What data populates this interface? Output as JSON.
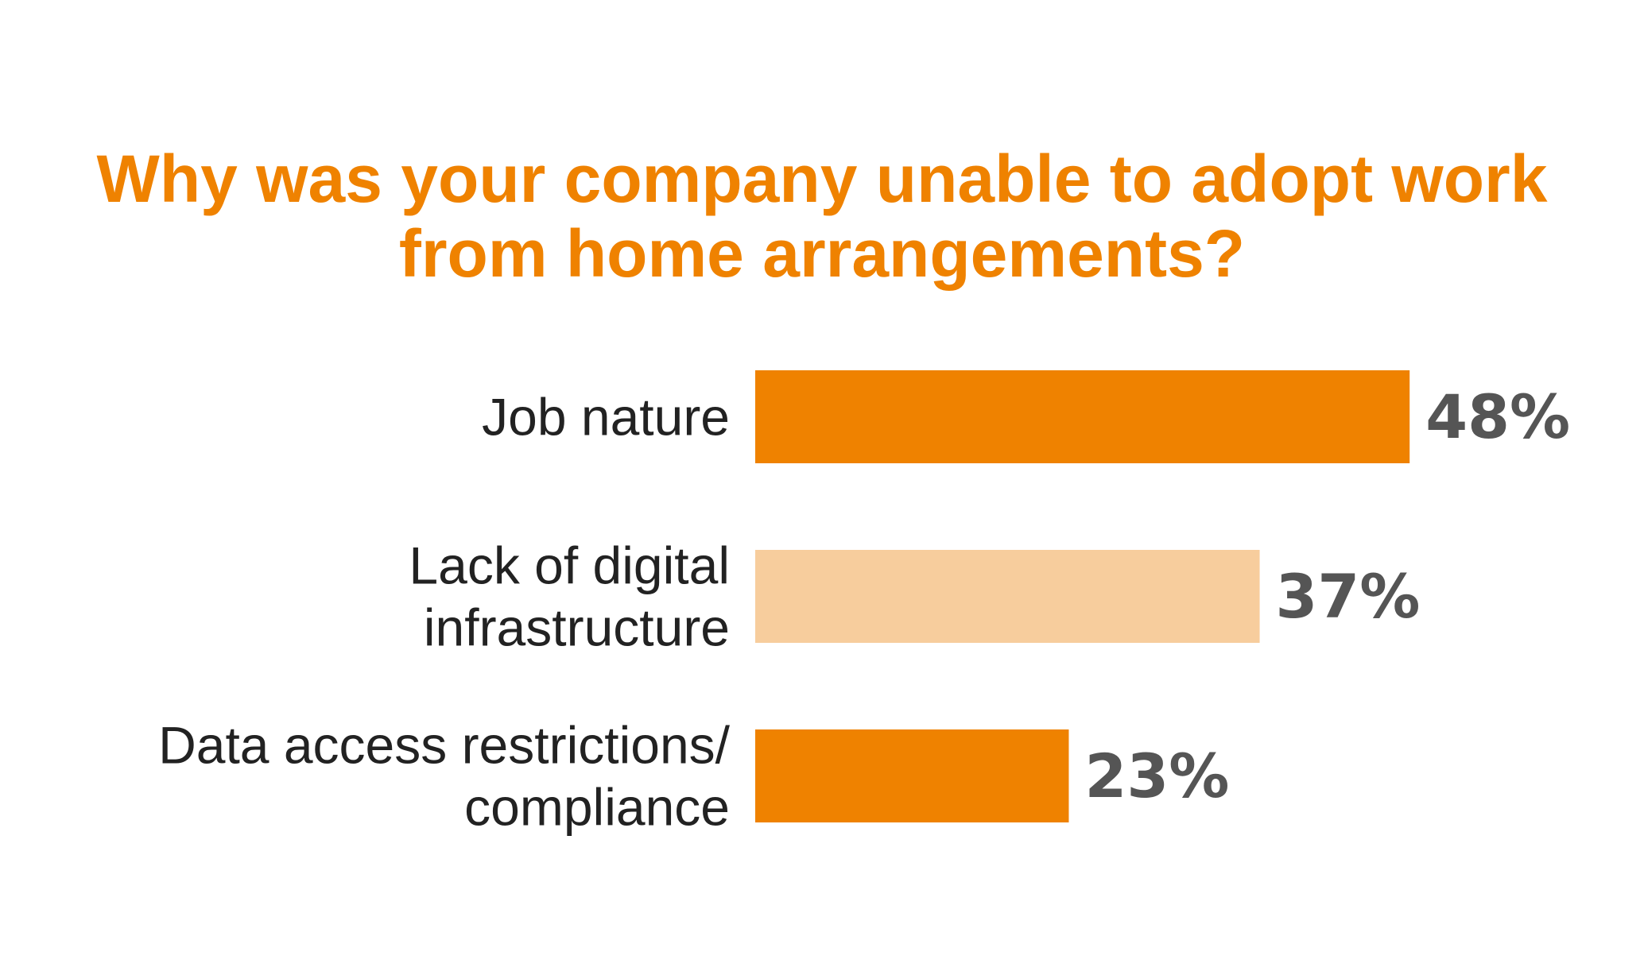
{
  "chart_data": {
    "type": "bar",
    "orientation": "horizontal",
    "title_lines": [
      "Why was your company unable to adopt work",
      "from home arrangements?"
    ],
    "categories": [
      [
        "Job nature"
      ],
      [
        "Lack of digital",
        "infrastructure"
      ],
      [
        "Data access restrictions/",
        "compliance"
      ]
    ],
    "values": [
      48,
      37,
      23
    ],
    "value_labels": [
      "48%",
      "37%",
      "23%"
    ],
    "xlim": [
      0,
      100
    ],
    "grid": false,
    "legend": "none",
    "colors": {
      "title": "#ef8200",
      "bars": [
        "#ef8200",
        "#f7cd9d",
        "#ef8200"
      ],
      "category_text": "#222222",
      "value_text": "#555555"
    }
  }
}
